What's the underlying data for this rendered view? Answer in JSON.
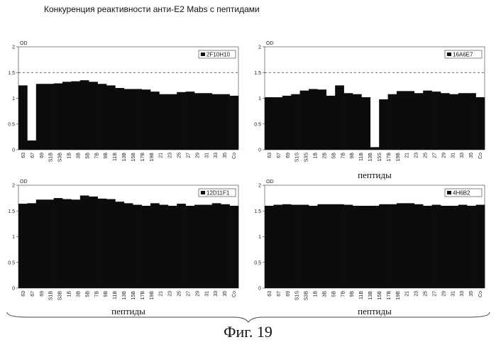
{
  "title": "Конкуренция реактивности анти-E2 Mabs с пептидами",
  "caption": "Фиг. 19",
  "chart_data": [
    {
      "type": "bar",
      "series": [
        {
          "name": "2F10H10",
          "values": [
            1.25,
            0.18,
            1.28,
            1.28,
            1.29,
            1.32,
            1.33,
            1.35,
            1.32,
            1.28,
            1.25,
            1.2,
            1.18,
            1.18,
            1.17,
            1.13,
            1.08,
            1.08,
            1.12,
            1.13,
            1.1,
            1.1,
            1.08,
            1.08,
            1.05
          ]
        }
      ],
      "categories": [
        "63",
        "67",
        "69",
        "S1B",
        "S3B",
        "1B",
        "3B",
        "5B",
        "7B",
        "9B",
        "11B",
        "13B",
        "15B",
        "17B",
        "19B",
        "21",
        "23",
        "25",
        "27",
        "29",
        "31",
        "33",
        "35",
        "Co",
        ""
      ],
      "tick_labels": [
        "63",
        "67",
        "69",
        "S1B",
        "S3B",
        "1B",
        "3B",
        "5B",
        "7B",
        "9B",
        "11B",
        "13B",
        "15B",
        "17B",
        "19B",
        "21",
        "23",
        "25",
        "27",
        "29",
        "31",
        "33",
        "35",
        "Co"
      ],
      "ylabel": "OD",
      "xlabel": "",
      "ylim": [
        0,
        2
      ],
      "yticks": [
        "0",
        "0.5",
        "1",
        "1.5",
        "2"
      ],
      "dashed_line": 1.5,
      "legend": "top-right"
    },
    {
      "type": "bar",
      "series": [
        {
          "name": "16A6E7",
          "values": [
            1.02,
            1.02,
            1.05,
            1.08,
            1.15,
            1.18,
            1.17,
            1.05,
            1.25,
            1.1,
            1.08,
            1.02,
            0.05,
            0.98,
            1.08,
            1.14,
            1.14,
            1.1,
            1.15,
            1.13,
            1.1,
            1.08,
            1.1,
            1.1,
            1.02
          ]
        }
      ],
      "categories": [
        "63",
        "67",
        "69",
        "S1B",
        "S3B",
        "1B",
        "3B",
        "5B",
        "7B",
        "9B",
        "11B",
        "13B",
        "15B",
        "17B",
        "19B",
        "21",
        "23",
        "25",
        "27",
        "29",
        "31",
        "33",
        "35",
        "Co",
        ""
      ],
      "tick_labels": [
        "63",
        "67",
        "69",
        "S1S",
        "S3S",
        "1B",
        "2B",
        "5B",
        "7B",
        "9B",
        "11B",
        "13B",
        "15S",
        "17B",
        "19B",
        "21",
        "23",
        "25",
        "27",
        "29",
        "31",
        "33",
        "35",
        "Co"
      ],
      "ylabel": "OD",
      "xlabel": "пептиды",
      "ylim": [
        0,
        2
      ],
      "yticks": [
        "0",
        "0.5",
        "1",
        "1.5",
        "2"
      ],
      "dashed_line": 1.5,
      "legend": "top-right"
    },
    {
      "type": "bar",
      "series": [
        {
          "name": "12D11F1",
          "values": [
            1.64,
            1.65,
            1.72,
            1.72,
            1.75,
            1.73,
            1.72,
            1.8,
            1.78,
            1.74,
            1.73,
            1.68,
            1.65,
            1.62,
            1.6,
            1.65,
            1.62,
            1.6,
            1.64,
            1.6,
            1.62,
            1.62,
            1.65,
            1.63,
            1.6
          ]
        }
      ],
      "categories": [
        "63",
        "67",
        "69",
        "S1B",
        "S3B",
        "1B",
        "3B",
        "5B",
        "7B",
        "9B",
        "11B",
        "13B",
        "15B",
        "17B",
        "19B",
        "21",
        "23",
        "25",
        "27",
        "29",
        "31",
        "33",
        "35",
        "Co",
        ""
      ],
      "tick_labels": [
        "63",
        "67",
        "69",
        "S1B",
        "S3B",
        "1B",
        "3B",
        "5B",
        "7B",
        "9B",
        "11B",
        "13B",
        "15B",
        "17B",
        "19B",
        "21",
        "23",
        "25",
        "27",
        "29",
        "31",
        "33",
        "35",
        "Co"
      ],
      "ylabel": "OD",
      "xlabel": "пептиды",
      "ylim": [
        0,
        2
      ],
      "yticks": [
        "0",
        "0.5",
        "1",
        "1.5",
        "2"
      ],
      "legend": "top-right"
    },
    {
      "type": "bar",
      "series": [
        {
          "name": "4H6B2",
          "values": [
            1.6,
            1.62,
            1.63,
            1.62,
            1.62,
            1.6,
            1.63,
            1.63,
            1.63,
            1.62,
            1.6,
            1.6,
            1.6,
            1.63,
            1.63,
            1.65,
            1.65,
            1.63,
            1.6,
            1.62,
            1.6,
            1.6,
            1.62,
            1.6,
            1.62
          ]
        }
      ],
      "categories": [
        "63",
        "67",
        "69",
        "S1B",
        "S3B",
        "1B",
        "3B",
        "5B",
        "7B",
        "9B",
        "11B",
        "13B",
        "15B",
        "17B",
        "19B",
        "21",
        "23",
        "25",
        "27",
        "29",
        "31",
        "33",
        "35",
        "Co",
        ""
      ],
      "tick_labels": [
        "63",
        "67",
        "69",
        "S1S",
        "S3B",
        "1B",
        "3B",
        "5B",
        "7B",
        "9B",
        "11B",
        "13B",
        "15B",
        "17B",
        "19B",
        "21",
        "23",
        "25",
        "27",
        "29",
        "31",
        "33",
        "35",
        "Co"
      ],
      "ylabel": "OD",
      "xlabel": "пептиды",
      "ylim": [
        0,
        2
      ],
      "yticks": [
        "0",
        "0.5",
        "1",
        "1.5",
        "2"
      ],
      "legend": "top-right"
    }
  ],
  "shared_xlabel": "пептиды"
}
